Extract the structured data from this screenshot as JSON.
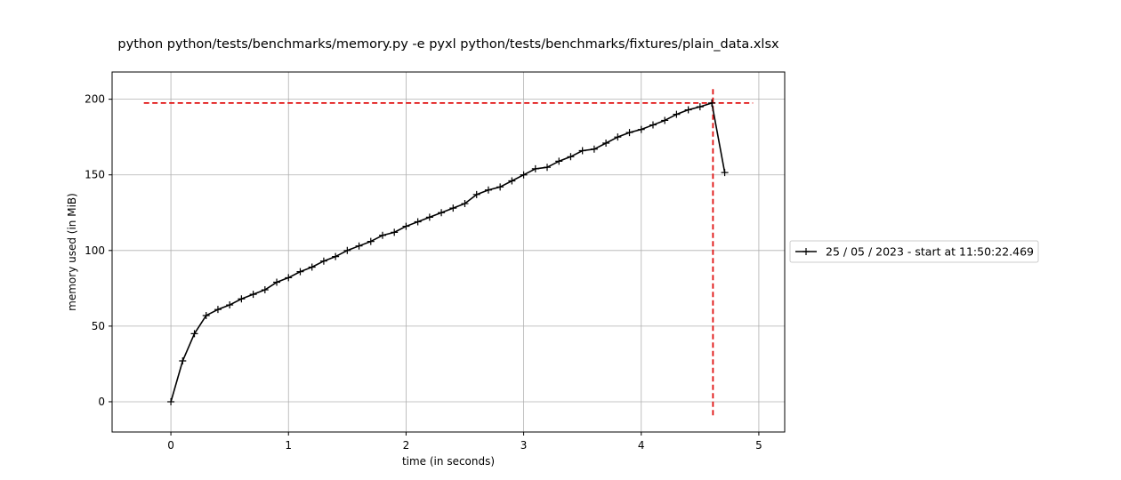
{
  "chart_data": {
    "type": "line",
    "title": "python python/tests/benchmarks/memory.py -e pyxl python/tests/benchmarks/fixtures/plain_data.xlsx",
    "xlabel": "time (in seconds)",
    "ylabel": "memory used (in MiB)",
    "xlim": [
      -0.5,
      5.22
    ],
    "ylim": [
      -20,
      218
    ],
    "xticks": [
      0,
      1,
      2,
      3,
      4,
      5
    ],
    "yticks": [
      0,
      50,
      100,
      150,
      200
    ],
    "grid": true,
    "legend_position": "right",
    "series": [
      {
        "name": "25 / 05 / 2023 - start at 11:50:22.469",
        "color": "#000000",
        "marker": "plus",
        "x": [
          0,
          0.1,
          0.2,
          0.3,
          0.4,
          0.5,
          0.6,
          0.7,
          0.8,
          0.9,
          1.0,
          1.1,
          1.2,
          1.3,
          1.4,
          1.5,
          1.6,
          1.7,
          1.8,
          1.9,
          2.0,
          2.1,
          2.2,
          2.3,
          2.4,
          2.5,
          2.6,
          2.7,
          2.8,
          2.9,
          3.0,
          3.1,
          3.2,
          3.3,
          3.4,
          3.5,
          3.6,
          3.7,
          3.8,
          3.9,
          4.0,
          4.1,
          4.2,
          4.3,
          4.4,
          4.5,
          4.6,
          4.71
        ],
        "y": [
          0,
          27,
          45,
          57,
          61,
          64,
          68,
          71,
          74,
          79,
          82,
          86,
          89,
          93,
          96,
          100,
          103,
          106,
          110,
          112,
          116,
          119,
          122,
          125,
          128,
          131,
          137,
          140,
          142,
          146,
          150,
          154,
          155,
          159,
          162,
          166,
          167,
          171,
          175,
          178,
          180,
          183,
          186,
          190,
          193,
          195,
          197.5,
          151.5
        ]
      }
    ],
    "annotations": {
      "peak_hline_y": 197.5,
      "peak_hline_x_range": [
        -0.23,
        4.95
      ],
      "peak_vline_x": 4.61,
      "peak_vline_y_range": [
        -9,
        208
      ],
      "color": "#e01010",
      "style": "dashed"
    }
  }
}
